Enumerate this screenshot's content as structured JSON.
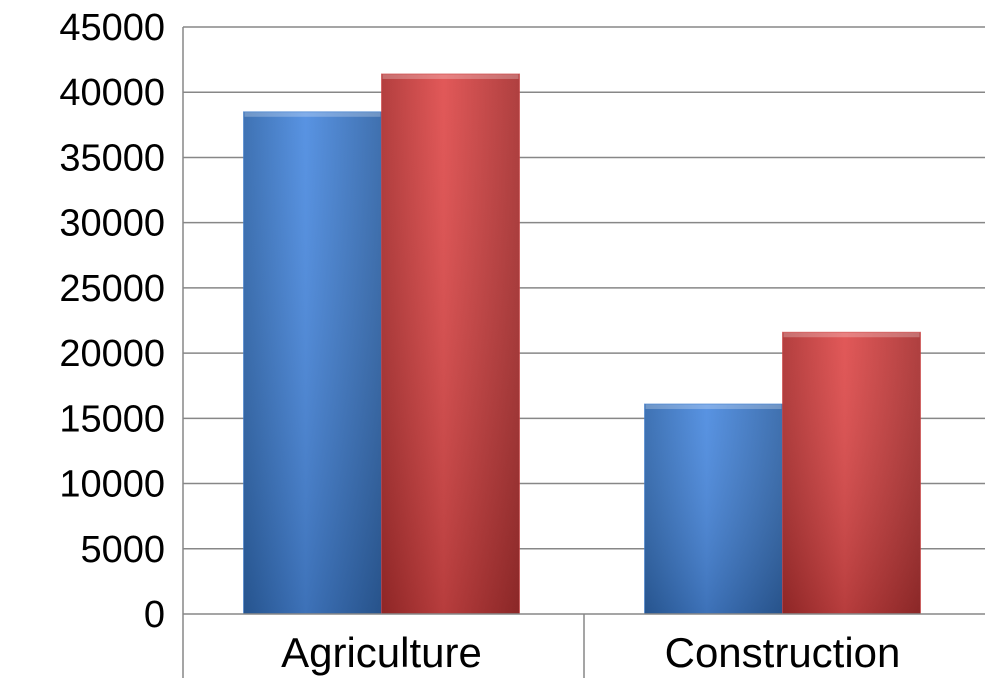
{
  "chart_data": {
    "type": "bar",
    "title": "",
    "xlabel": "",
    "ylabel": "",
    "categories": [
      "Agriculture",
      "Construction"
    ],
    "series": [
      {
        "values": [
          38500,
          16100
        ],
        "color": "#3f7fcf"
      },
      {
        "values": [
          41400,
          21600
        ],
        "color": "#cf3f3f"
      }
    ],
    "ylim": [
      0,
      45000
    ],
    "yticks": [
      0,
      5000,
      10000,
      15000,
      20000,
      25000,
      30000,
      35000,
      40000,
      45000
    ],
    "grid": true,
    "legend": "none"
  }
}
